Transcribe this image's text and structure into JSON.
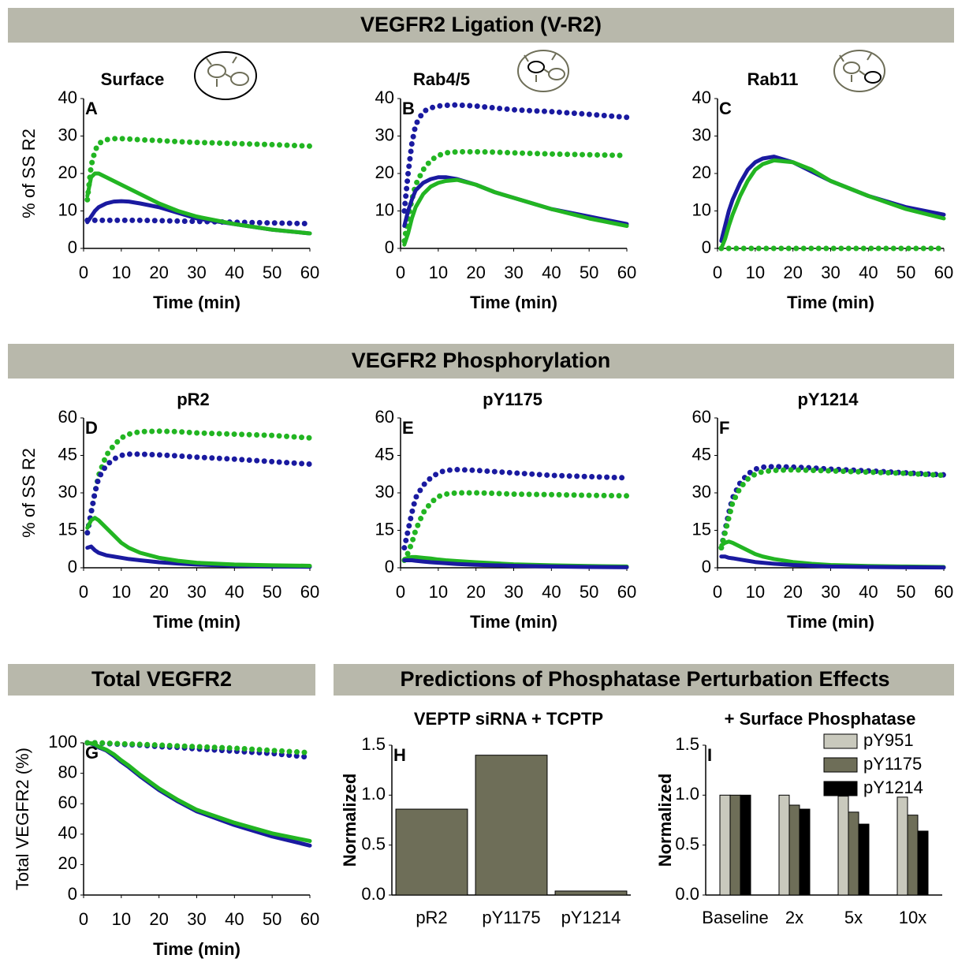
{
  "headers": [
    "VEGFR2 Ligation (V-R2)",
    "VEGFR2 Phosphorylation",
    "Total VEGFR2",
    "Predictions of Phosphatase Perturbation Effects"
  ],
  "chart_data": [
    {
      "type": "line",
      "title": "Surface",
      "panel_label": "A",
      "ylabel": "% of SS R2",
      "xlabel": "Time (min)",
      "x": [
        1,
        2,
        3,
        4,
        6,
        8,
        10,
        12,
        15,
        20,
        25,
        30,
        40,
        50,
        60
      ],
      "xlim": [
        0,
        60
      ],
      "xticks": [
        0,
        10,
        20,
        30,
        40,
        50,
        60
      ],
      "ylim": [
        0,
        40
      ],
      "yticks": [
        0,
        10,
        20,
        30,
        40
      ],
      "series": [
        {
          "color": "#22b522",
          "style": "dotted",
          "values": [
            13,
            22,
            26,
            28,
            29,
            29.3,
            29.3,
            29.2,
            29,
            28.8,
            28.5,
            28.3,
            28,
            27.7,
            27.3
          ]
        },
        {
          "color": "#1a1aa0",
          "style": "dotted",
          "values": [
            7.5,
            7.5,
            7.5,
            7.5,
            7.5,
            7.5,
            7.5,
            7.5,
            7.5,
            7.4,
            7.3,
            7.2,
            7,
            6.8,
            6.6
          ]
        },
        {
          "color": "#1a1aa0",
          "style": "solid",
          "values": [
            7,
            8.5,
            10,
            11,
            12,
            12.5,
            12.6,
            12.5,
            12,
            11,
            9.5,
            8,
            6.5,
            5,
            4
          ]
        },
        {
          "color": "#22b522",
          "style": "solid",
          "values": [
            14,
            19,
            20,
            20,
            19,
            18,
            17,
            16,
            14.5,
            12,
            10,
            8.5,
            6.5,
            5,
            4
          ]
        }
      ]
    },
    {
      "type": "line",
      "title": "Rab4/5",
      "panel_label": "B",
      "xlabel": "Time (min)",
      "x": [
        1,
        2,
        3,
        4,
        6,
        8,
        10,
        12,
        15,
        20,
        25,
        30,
        40,
        50,
        60
      ],
      "xlim": [
        0,
        60
      ],
      "xticks": [
        0,
        10,
        20,
        30,
        40,
        50,
        60
      ],
      "ylim": [
        0,
        40
      ],
      "yticks": [
        0,
        10,
        20,
        30,
        40
      ],
      "series": [
        {
          "color": "#1a1aa0",
          "style": "dotted",
          "values": [
            10,
            20,
            28,
            33,
            36.5,
            37.5,
            38,
            38.2,
            38.3,
            38,
            37.5,
            37,
            36.5,
            35.8,
            35
          ]
        },
        {
          "color": "#22b522",
          "style": "dotted",
          "values": [
            2,
            8,
            13,
            17,
            21,
            23.5,
            24.8,
            25.5,
            25.8,
            25.8,
            25.7,
            25.5,
            25.2,
            25,
            24.8
          ]
        },
        {
          "color": "#1a1aa0",
          "style": "solid",
          "values": [
            6,
            10,
            13,
            15.5,
            17.5,
            18.5,
            19,
            19,
            18.5,
            17,
            15,
            13.5,
            10.5,
            8.5,
            6.5
          ]
        },
        {
          "color": "#22b522",
          "style": "solid",
          "values": [
            1,
            4,
            8,
            11,
            14.5,
            16.5,
            17.5,
            18,
            18.3,
            17,
            15,
            13.5,
            10.5,
            8,
            6
          ]
        }
      ]
    },
    {
      "type": "line",
      "title": "Rab11",
      "panel_label": "C",
      "xlabel": "Time (min)",
      "x": [
        1,
        2,
        3,
        4,
        6,
        8,
        10,
        12,
        15,
        20,
        25,
        30,
        40,
        50,
        60
      ],
      "xlim": [
        0,
        60
      ],
      "xticks": [
        0,
        10,
        20,
        30,
        40,
        50,
        60
      ],
      "ylim": [
        0,
        40
      ],
      "yticks": [
        0,
        10,
        20,
        30,
        40
      ],
      "series": [
        {
          "color": "#22b522",
          "style": "dotted",
          "values": [
            0,
            0,
            0,
            0,
            0,
            0,
            0,
            0,
            0,
            0,
            0,
            0,
            0,
            0,
            0
          ]
        },
        {
          "color": "#1a1aa0",
          "style": "solid",
          "values": [
            2,
            6,
            10,
            13,
            17.5,
            21,
            23,
            24,
            24.5,
            23,
            20.5,
            18,
            14,
            11,
            9
          ]
        },
        {
          "color": "#22b522",
          "style": "solid",
          "values": [
            0,
            2.5,
            6,
            9,
            14,
            18,
            21,
            22.5,
            23.5,
            23,
            21,
            18,
            14,
            10.5,
            8
          ]
        }
      ]
    },
    {
      "type": "line",
      "title": "pR2",
      "panel_label": "D",
      "ylabel": "% of SS R2",
      "xlabel": "Time (min)",
      "x": [
        1,
        2,
        3,
        4,
        6,
        8,
        10,
        12,
        15,
        20,
        25,
        30,
        40,
        50,
        60
      ],
      "xlim": [
        0,
        60
      ],
      "xticks": [
        0,
        10,
        20,
        30,
        40,
        50,
        60
      ],
      "ylim": [
        0,
        60
      ],
      "yticks": [
        0,
        15,
        30,
        45,
        60
      ],
      "series": [
        {
          "color": "#22b522",
          "style": "dotted",
          "values": [
            14,
            22,
            30,
            37,
            45,
            49,
            52,
            53.5,
            54.5,
            54.7,
            54.5,
            54,
            53.5,
            53,
            52
          ]
        },
        {
          "color": "#1a1aa0",
          "style": "dotted",
          "values": [
            14,
            22,
            30,
            36,
            41,
            43.5,
            45,
            45.5,
            45.5,
            45.2,
            44.8,
            44.3,
            43.5,
            42.5,
            41.5
          ]
        },
        {
          "color": "#1a1aa0",
          "style": "solid",
          "values": [
            8,
            8.5,
            7,
            6,
            5,
            4.5,
            4,
            3.5,
            3,
            2.2,
            1.7,
            1.3,
            0.8,
            0.5,
            0.4
          ]
        },
        {
          "color": "#22b522",
          "style": "solid",
          "values": [
            16,
            19,
            20,
            19,
            16,
            13,
            10,
            8,
            6,
            4,
            2.8,
            2,
            1.3,
            1,
            0.8
          ]
        }
      ]
    },
    {
      "type": "line",
      "title": "pY1175",
      "panel_label": "E",
      "xlabel": "Time (min)",
      "x": [
        1,
        2,
        3,
        4,
        6,
        8,
        10,
        12,
        15,
        20,
        25,
        30,
        40,
        50,
        60
      ],
      "xlim": [
        0,
        60
      ],
      "xticks": [
        0,
        10,
        20,
        30,
        40,
        50,
        60
      ],
      "ylim": [
        0,
        60
      ],
      "yticks": [
        0,
        15,
        30,
        45,
        60
      ],
      "series": [
        {
          "color": "#1a1aa0",
          "style": "dotted",
          "values": [
            8,
            15,
            22,
            28,
            33,
            36,
            38,
            39,
            39.3,
            39,
            38.5,
            38,
            37,
            36.5,
            36
          ]
        },
        {
          "color": "#22b522",
          "style": "dotted",
          "values": [
            3,
            6,
            10,
            15,
            22,
            26,
            28.5,
            29.5,
            30,
            30,
            29.8,
            29.5,
            29.3,
            29,
            28.8
          ]
        },
        {
          "color": "#22b522",
          "style": "solid",
          "values": [
            3.5,
            4,
            4.3,
            4.3,
            4,
            3.7,
            3.3,
            3,
            2.7,
            2.2,
            1.8,
            1.4,
            1,
            0.7,
            0.5
          ]
        },
        {
          "color": "#1a1aa0",
          "style": "solid",
          "values": [
            3,
            3,
            3,
            2.8,
            2.5,
            2.2,
            2,
            1.8,
            1.5,
            1.2,
            1,
            0.8,
            0.5,
            0.3,
            0.2
          ]
        }
      ]
    },
    {
      "type": "line",
      "title": "pY1214",
      "panel_label": "F",
      "xlabel": "Time (min)",
      "x": [
        1,
        2,
        3,
        4,
        6,
        8,
        10,
        12,
        15,
        20,
        25,
        30,
        40,
        50,
        60
      ],
      "xlim": [
        0,
        60
      ],
      "xticks": [
        0,
        10,
        20,
        30,
        40,
        50,
        60
      ],
      "ylim": [
        0,
        60
      ],
      "yticks": [
        0,
        15,
        30,
        45,
        60
      ],
      "series": [
        {
          "color": "#1a1aa0",
          "style": "dotted",
          "values": [
            8,
            15,
            22,
            28,
            34,
            37.5,
            39.5,
            40.3,
            40.5,
            40.3,
            40,
            39.5,
            38.8,
            38,
            37.2
          ]
        },
        {
          "color": "#22b522",
          "style": "dotted",
          "values": [
            8,
            14,
            20,
            26,
            32,
            35.5,
            37.5,
            38.5,
            39,
            39.2,
            39,
            38.8,
            38.3,
            37.8,
            37
          ]
        },
        {
          "color": "#22b522",
          "style": "solid",
          "values": [
            9,
            10,
            10.5,
            10,
            8.5,
            7,
            5.5,
            4.5,
            3.5,
            2.3,
            1.6,
            1.1,
            0.7,
            0.5,
            0.3
          ]
        },
        {
          "color": "#1a1aa0",
          "style": "solid",
          "values": [
            4.5,
            4.5,
            4,
            3.8,
            3.3,
            2.8,
            2.3,
            2,
            1.6,
            1.1,
            0.8,
            0.5,
            0.3,
            0.2,
            0.1
          ]
        }
      ]
    },
    {
      "type": "line",
      "panel_label": "G",
      "ylabel": "Total VEGFR2 (%)",
      "xlabel": "Time (min)",
      "x": [
        1,
        2,
        3,
        4,
        6,
        8,
        10,
        12,
        15,
        20,
        25,
        30,
        40,
        50,
        60
      ],
      "xlim": [
        0,
        60
      ],
      "xticks": [
        0,
        10,
        20,
        30,
        40,
        50,
        60
      ],
      "ylim": [
        0,
        100
      ],
      "yticks": [
        0,
        20,
        40,
        60,
        80,
        100
      ],
      "series": [
        {
          "color": "#1a1aa0",
          "style": "dotted",
          "values": [
            100,
            100,
            100,
            100,
            99.5,
            99.3,
            99,
            98.8,
            98.5,
            97.5,
            97,
            96,
            94.5,
            93,
            90.5
          ]
        },
        {
          "color": "#22b522",
          "style": "dotted",
          "values": [
            100,
            100,
            100,
            100,
            99.8,
            99.6,
            99.4,
            99.2,
            99,
            98.5,
            98,
            97.5,
            96.5,
            95,
            93.5
          ]
        },
        {
          "color": "#1a1aa0",
          "style": "solid",
          "values": [
            100,
            99.5,
            98.5,
            97,
            95,
            91.5,
            87.5,
            84,
            78,
            69,
            61.5,
            55,
            46,
            38.5,
            32.5
          ]
        },
        {
          "color": "#22b522",
          "style": "solid",
          "values": [
            100,
            99.7,
            99,
            97.5,
            95.5,
            92.5,
            88.5,
            85,
            79,
            70,
            62.5,
            56,
            47.5,
            40.5,
            35.5
          ]
        }
      ]
    },
    {
      "type": "bar",
      "title": "VEPTP siRNA + TCPTP",
      "panel_label": "H",
      "ylabel": "Normalized",
      "categories": [
        "pR2",
        "pY1175",
        "pY1214"
      ],
      "ylim": [
        0,
        1.5
      ],
      "yticks": [
        {
          "value": 0,
          "label": "0.0"
        },
        0.5,
        {
          "value": 1,
          "label": "1.0"
        },
        1.5
      ],
      "series": [
        {
          "color": "#6e6e58",
          "values": [
            0.86,
            1.4,
            0.04
          ]
        }
      ]
    },
    {
      "type": "bar",
      "title": "+ Surface Phosphatase",
      "panel_label": "I",
      "ylabel": "Normalized",
      "legend": "top-right",
      "categories": [
        "Baseline",
        "2x",
        "5x",
        "10x"
      ],
      "ylim": [
        0,
        1.5
      ],
      "yticks": [
        {
          "value": 0,
          "label": "0.0"
        },
        0.5,
        {
          "value": 1,
          "label": "1.0"
        },
        1.5
      ],
      "series": [
        {
          "name": "pY951",
          "color": "#c9c9bd",
          "values": [
            1,
            1,
            0.99,
            0.98
          ]
        },
        {
          "name": "pY1175",
          "color": "#6e6e58",
          "values": [
            1,
            0.9,
            0.83,
            0.8
          ]
        },
        {
          "name": "pY1214",
          "color": "#000000",
          "values": [
            1,
            0.86,
            0.71,
            0.64
          ]
        }
      ]
    }
  ]
}
